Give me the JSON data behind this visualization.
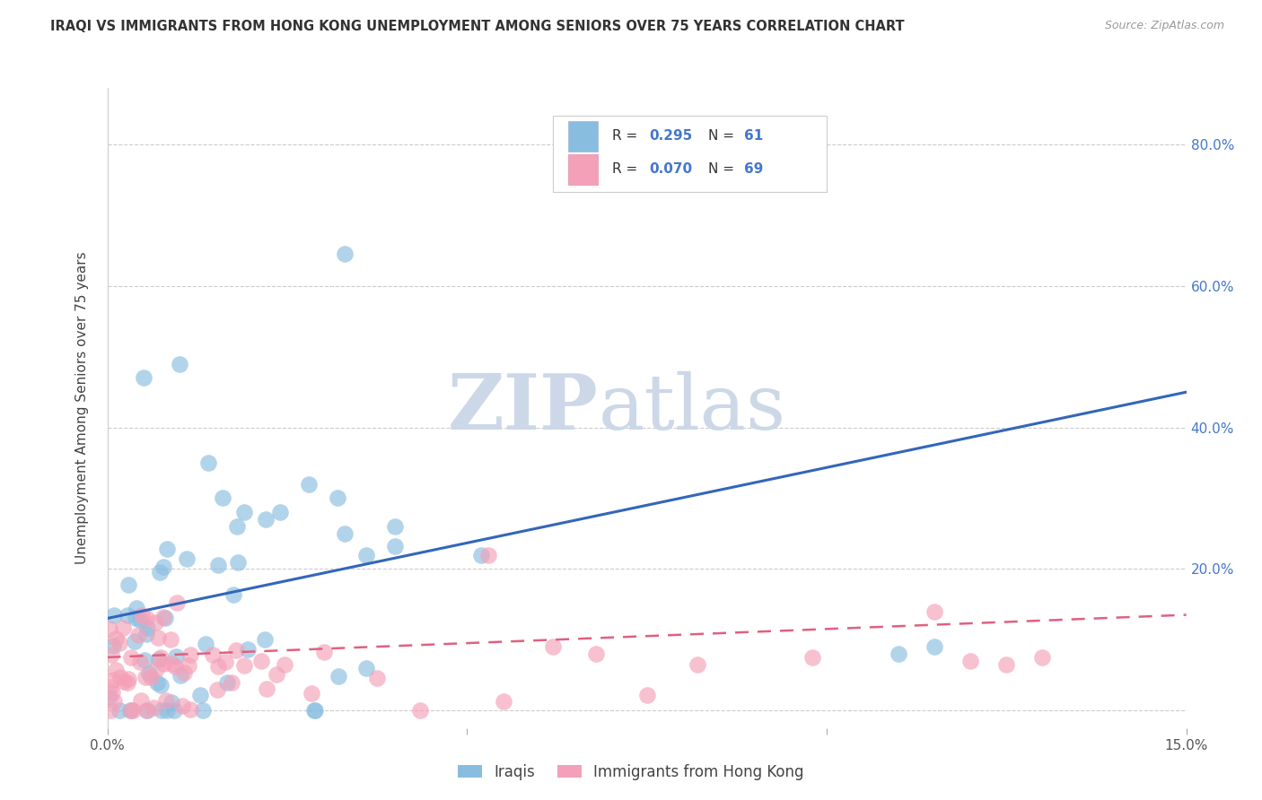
{
  "title": "IRAQI VS IMMIGRANTS FROM HONG KONG UNEMPLOYMENT AMONG SENIORS OVER 75 YEARS CORRELATION CHART",
  "source": "Source: ZipAtlas.com",
  "ylabel": "Unemployment Among Seniors over 75 years",
  "xlim": [
    0.0,
    0.15
  ],
  "ylim": [
    -0.025,
    0.88
  ],
  "xticks": [
    0.0,
    0.05,
    0.1,
    0.15
  ],
  "xticklabels": [
    "0.0%",
    "",
    "",
    "15.0%"
  ],
  "yticks": [
    0.0,
    0.2,
    0.4,
    0.6,
    0.8
  ],
  "yticklabels_right": [
    "",
    "20.0%",
    "40.0%",
    "60.0%",
    "80.0%"
  ],
  "legend_labels": [
    "Iraqis",
    "Immigrants from Hong Kong"
  ],
  "series1_color": "#89bde0",
  "series2_color": "#f4a0b8",
  "trendline1_color": "#3366bb",
  "trendline2_color": "#e06080",
  "watermark_zip": "ZIP",
  "watermark_atlas": "atlas",
  "watermark_color": "#ccd8e8",
  "background_color": "#ffffff",
  "grid_color": "#cccccc",
  "tick_color": "#aaaaaa",
  "label_color": "#4477cc",
  "title_color": "#333333",
  "trendline1_y0": 0.13,
  "trendline1_y1": 0.45,
  "trendline2_y0": 0.075,
  "trendline2_y1": 0.135
}
